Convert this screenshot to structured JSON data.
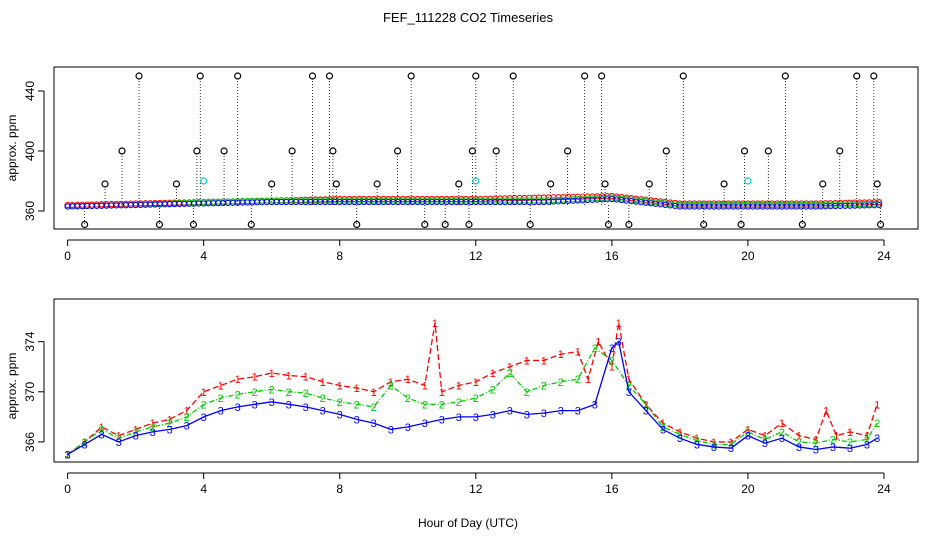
{
  "colors": {
    "series1": "#ff0000",
    "series2": "#00cc00",
    "series3": "#0000ff",
    "black": "#000000",
    "cyan": "#00cccc"
  },
  "chart_data": [
    {
      "type": "scatter",
      "title": "FEF_111228  CO2 Timeseries",
      "xlabel": "",
      "ylabel": "approx. ppm",
      "xlim": [
        -0.4,
        25
      ],
      "ylim": [
        348,
        456
      ],
      "xticks": [
        "0",
        "4",
        "8",
        "12",
        "16",
        "20",
        "24"
      ],
      "xtick_values": [
        0,
        4,
        8,
        12,
        16,
        20,
        24
      ],
      "yticks": [
        "360",
        "400",
        "440"
      ],
      "ytick_values": [
        360,
        400,
        440
      ],
      "marker": "circle",
      "series": [
        {
          "name": "1",
          "color": "#ff0000",
          "x": [
            0,
            2,
            4,
            6,
            8,
            10,
            12,
            14,
            16,
            18,
            20,
            22,
            24
          ],
          "y": [
            364,
            365,
            366,
            367,
            368,
            368,
            368,
            369,
            370,
            365,
            365,
            365,
            366
          ]
        },
        {
          "name": "2",
          "color": "#00cc00",
          "x": [
            0,
            2,
            4,
            6,
            8,
            10,
            12,
            14,
            16,
            18,
            20,
            22,
            24
          ],
          "y": [
            363,
            364,
            366,
            367,
            367,
            367,
            367,
            367,
            369,
            364,
            364,
            364,
            365
          ]
        },
        {
          "name": "3",
          "color": "#0000ff",
          "x": [
            0,
            2,
            4,
            6,
            8,
            10,
            12,
            14,
            16,
            18,
            20,
            22,
            24
          ],
          "y": [
            363,
            364,
            365,
            366,
            366,
            366,
            366,
            366,
            368,
            363,
            363,
            363,
            364
          ]
        }
      ],
      "spikes": {
        "color": "#000000",
        "x": [
          0.5,
          1.1,
          1.6,
          2.1,
          2.7,
          3.2,
          3.7,
          3.8,
          3.9,
          4.6,
          5.0,
          5.4,
          6.0,
          6.6,
          7.2,
          7.7,
          7.8,
          7.9,
          8.5,
          9.1,
          9.7,
          10.1,
          10.5,
          11.1,
          11.5,
          11.8,
          11.9,
          12.0,
          12.6,
          13.1,
          13.6,
          14.2,
          14.7,
          15.2,
          15.7,
          15.8,
          15.9,
          16.5,
          17.1,
          17.6,
          18.1,
          18.7,
          19.3,
          19.8,
          19.9,
          20.6,
          21.1,
          21.6,
          22.2,
          22.7,
          23.2,
          23.7,
          23.8,
          23.9
        ],
        "y": [
          351,
          378,
          400,
          450,
          351,
          378,
          351,
          400,
          450,
          400,
          450,
          351,
          378,
          400,
          450,
          450,
          400,
          378,
          351,
          378,
          400,
          450,
          351,
          351,
          378,
          351,
          400,
          450,
          400,
          450,
          351,
          378,
          400,
          450,
          450,
          378,
          351,
          351,
          378,
          400,
          450,
          351,
          378,
          351,
          400,
          400,
          450,
          351,
          378,
          400,
          450,
          450,
          378,
          351
        ]
      },
      "cyan_points": {
        "x": [
          4.0,
          12.0,
          20.0
        ],
        "y": [
          380,
          380,
          380
        ]
      }
    },
    {
      "type": "line",
      "title": "",
      "xlabel": "Hour of Day (UTC)",
      "ylabel": "approx. ppm",
      "xlim": [
        -0.4,
        25
      ],
      "ylim": [
        364.4,
        377.4
      ],
      "xticks": [
        "0",
        "4",
        "8",
        "12",
        "16",
        "20",
        "24"
      ],
      "xtick_values": [
        0,
        4,
        8,
        12,
        16,
        20,
        24
      ],
      "yticks": [
        "366",
        "370",
        "374"
      ],
      "ytick_values": [
        366,
        370,
        374
      ],
      "series": [
        {
          "name": "1",
          "label": "1",
          "color": "#ff0000",
          "x": [
            0,
            0.5,
            1,
            1.5,
            2,
            2.5,
            3,
            3.5,
            4,
            4.5,
            5,
            5.5,
            6,
            6.5,
            7,
            7.5,
            8,
            8.5,
            9,
            9.5,
            10,
            10.5,
            10.8,
            11,
            11.5,
            12,
            12.5,
            13,
            13.5,
            14,
            14.5,
            15,
            15.3,
            15.6,
            16,
            16.2,
            16.5,
            17,
            17.5,
            18,
            18.5,
            19,
            19.5,
            20,
            20.5,
            21,
            21.5,
            22,
            22.3,
            22.6,
            23,
            23.5,
            23.8
          ],
          "y": [
            365.0,
            366.0,
            367.2,
            366.5,
            367.0,
            367.5,
            367.8,
            368.5,
            370.0,
            370.5,
            371.0,
            371.2,
            371.5,
            371.3,
            371.2,
            370.8,
            370.5,
            370.3,
            370.0,
            370.8,
            371.0,
            370.5,
            375.5,
            370.0,
            370.5,
            370.8,
            371.5,
            372.0,
            372.5,
            372.5,
            373.0,
            373.2,
            371.0,
            374.0,
            372.0,
            375.5,
            371.0,
            369.0,
            367.5,
            366.8,
            366.3,
            366.0,
            366.0,
            367.0,
            366.5,
            367.5,
            366.5,
            366.2,
            368.5,
            366.5,
            366.8,
            366.5,
            369.0
          ]
        },
        {
          "name": "2",
          "label": "2",
          "color": "#00cc00",
          "x": [
            0,
            0.5,
            1,
            1.5,
            2,
            2.5,
            3,
            3.5,
            4,
            4.5,
            5,
            5.5,
            6,
            6.5,
            7,
            7.5,
            8,
            8.5,
            9,
            9.5,
            10,
            10.5,
            11,
            11.5,
            12,
            12.5,
            13,
            13.5,
            14,
            14.5,
            15,
            15.5,
            16,
            16.5,
            17,
            17.5,
            18,
            18.5,
            19,
            19.5,
            20,
            20.5,
            21,
            21.5,
            22,
            22.5,
            23,
            23.5,
            23.8
          ],
          "y": [
            365.0,
            366.0,
            367.0,
            366.3,
            366.8,
            367.2,
            367.5,
            368.0,
            369.0,
            369.5,
            369.8,
            370.0,
            370.2,
            370.0,
            369.9,
            369.5,
            369.2,
            369.0,
            368.8,
            370.5,
            369.5,
            369.0,
            369.0,
            369.2,
            369.5,
            370.2,
            371.5,
            370.0,
            370.5,
            370.8,
            371.0,
            373.5,
            372.5,
            370.5,
            369.0,
            367.2,
            366.6,
            366.1,
            365.8,
            365.8,
            366.8,
            366.2,
            366.8,
            366.0,
            365.9,
            366.2,
            366.0,
            366.2,
            367.5
          ]
        },
        {
          "name": "3",
          "label": "3",
          "color": "#0000ff",
          "x": [
            0,
            0.5,
            1,
            1.5,
            2,
            2.5,
            3,
            3.5,
            4,
            4.5,
            5,
            5.5,
            6,
            6.5,
            7,
            7.5,
            8,
            8.5,
            9,
            9.5,
            10,
            10.5,
            11,
            11.5,
            12,
            12.5,
            13,
            13.5,
            14,
            14.5,
            15,
            15.5,
            16,
            16.2,
            16.5,
            17,
            17.5,
            18,
            18.5,
            19,
            19.5,
            20,
            20.5,
            21,
            21.5,
            22,
            22.5,
            23,
            23.5,
            23.8
          ],
          "y": [
            365.0,
            365.8,
            366.6,
            366.0,
            366.5,
            366.8,
            367.0,
            367.3,
            368.0,
            368.5,
            368.8,
            369.0,
            369.2,
            369.0,
            368.8,
            368.5,
            368.2,
            367.8,
            367.5,
            367.0,
            367.2,
            367.5,
            367.8,
            368.0,
            368.0,
            368.2,
            368.5,
            368.2,
            368.3,
            368.5,
            368.5,
            369.0,
            373.5,
            374.0,
            370.0,
            368.5,
            367.0,
            366.3,
            365.8,
            365.6,
            365.5,
            366.5,
            365.9,
            366.3,
            365.6,
            365.4,
            365.6,
            365.5,
            365.8,
            366.3
          ]
        }
      ]
    }
  ]
}
